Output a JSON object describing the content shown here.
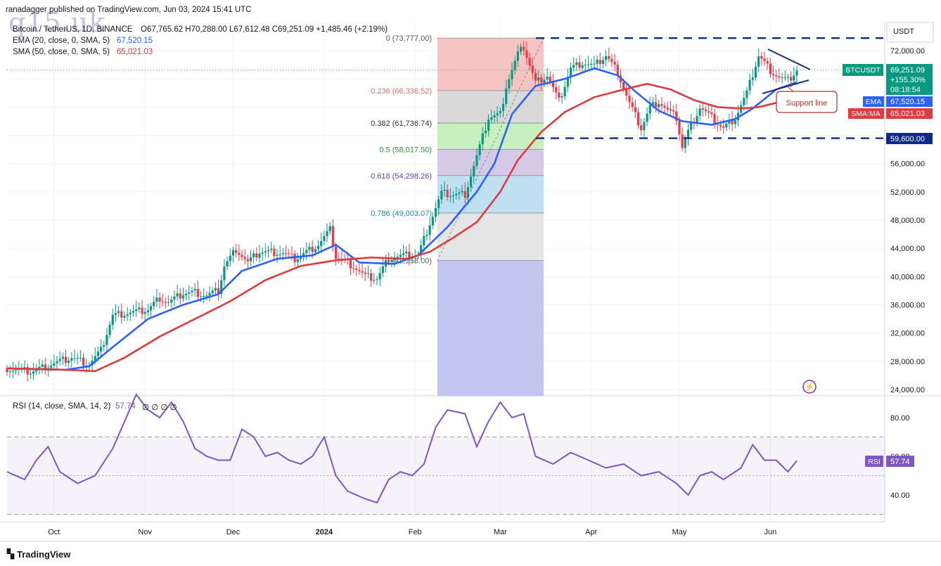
{
  "header": {
    "published": "ranadagger published on TradingView.com, Jun 03, 2024 15:41 UTC",
    "symbol": "Bitcoin / TetherUS, 1D, BINANCE",
    "ohlc": "O67,765.62  H70,288.00  L67,612.48  C69,251.09  +1,485.46 (+2.19%)",
    "ema_label": "EMA (20, close, 0, SMA, 5)",
    "ema_value": "67,520.15",
    "sma_label": "SMA (50, close, 0, SMA, 5)",
    "sma_value": "65,021.03",
    "rsi_label": "RSI (14, close, SMA, 14, 2)",
    "rsi_value": "57.74",
    "rsi_tail": "∅ ∅ ∅ ∅",
    "watermark": "q15.uk",
    "footer_logo": "TradingView"
  },
  "colors": {
    "up": "#089981",
    "down": "#f23645",
    "ema": "#2962ff",
    "sma": "#e03a3e",
    "rsi": "#7e57c2",
    "dash": "#0d2a8a",
    "price_tag": "#089981"
  },
  "chart_data": [
    {
      "type": "line",
      "title": "Bitcoin / TetherUS, 1D, BINANCE",
      "currency": "USDT",
      "y_ticks": [
        24000,
        28000,
        32000,
        36000,
        40000,
        44000,
        48000,
        52000,
        56000,
        60000,
        64000,
        68000,
        72000
      ],
      "y_tick_labels": [
        "24,000.00",
        "28,000.00",
        "32,000.00",
        "36,000.00",
        "40,000.00",
        "44,000.00",
        "48,000.00",
        "52,000.00",
        "56,000.00",
        "60,000.00",
        "64,000.00",
        "68,000.00",
        "72,000.00"
      ],
      "x_tick_labels": [
        "Oct",
        "Nov",
        "Dec",
        "2024",
        "Feb",
        "Mar",
        "Apr",
        "May",
        "Jun"
      ],
      "x_tick_days": [
        16,
        47,
        77,
        108,
        139,
        168,
        199,
        229,
        260
      ],
      "close_series": {
        "name": "BTCUSDT",
        "points": [
          [
            0,
            27000
          ],
          [
            8,
            26500
          ],
          [
            16,
            27700
          ],
          [
            22,
            28500
          ],
          [
            28,
            27600
          ],
          [
            32,
            29500
          ],
          [
            36,
            34500
          ],
          [
            40,
            34800
          ],
          [
            44,
            35000
          ],
          [
            48,
            35300
          ],
          [
            52,
            37000
          ],
          [
            55,
            36300
          ],
          [
            60,
            37600
          ],
          [
            64,
            37800
          ],
          [
            68,
            37300
          ],
          [
            72,
            38000
          ],
          [
            74,
            41500
          ],
          [
            78,
            43900
          ],
          [
            82,
            42000
          ],
          [
            86,
            43500
          ],
          [
            90,
            43500
          ],
          [
            94,
            43300
          ],
          [
            98,
            42500
          ],
          [
            102,
            43500
          ],
          [
            106,
            44500
          ],
          [
            110,
            46600
          ],
          [
            112,
            42800
          ],
          [
            118,
            41500
          ],
          [
            122,
            40000
          ],
          [
            126,
            39700
          ],
          [
            130,
            42600
          ],
          [
            136,
            43000
          ],
          [
            140,
            43000
          ],
          [
            144,
            47600
          ],
          [
            148,
            51800
          ],
          [
            152,
            51600
          ],
          [
            156,
            51700
          ],
          [
            160,
            57000
          ],
          [
            164,
            62500
          ],
          [
            168,
            63000
          ],
          [
            170,
            67000
          ],
          [
            174,
            71500
          ],
          [
            176,
            72500
          ],
          [
            180,
            67500
          ],
          [
            184,
            68500
          ],
          [
            188,
            64800
          ],
          [
            192,
            69500
          ],
          [
            196,
            70300
          ],
          [
            200,
            69800
          ],
          [
            204,
            71300
          ],
          [
            208,
            69000
          ],
          [
            212,
            64500
          ],
          [
            216,
            61000
          ],
          [
            219,
            64000
          ],
          [
            222,
            64800
          ],
          [
            225,
            63500
          ],
          [
            228,
            62500
          ],
          [
            230,
            58300
          ],
          [
            232,
            60500
          ],
          [
            236,
            64000
          ],
          [
            240,
            62500
          ],
          [
            244,
            61000
          ],
          [
            248,
            62500
          ],
          [
            252,
            66000
          ],
          [
            256,
            71300
          ],
          [
            260,
            69200
          ],
          [
            263,
            68200
          ],
          [
            266,
            67700
          ],
          [
            269,
            69251
          ]
        ]
      },
      "series": [
        {
          "name": "EMA (20, close, 0, SMA, 5)",
          "last": 67520.15,
          "points": [
            [
              0,
              27000
            ],
            [
              20,
              26800
            ],
            [
              28,
              27300
            ],
            [
              36,
              30000
            ],
            [
              48,
              34000
            ],
            [
              60,
              36000
            ],
            [
              72,
              37500
            ],
            [
              80,
              40800
            ],
            [
              92,
              42500
            ],
            [
              104,
              43000
            ],
            [
              112,
              44500
            ],
            [
              120,
              42000
            ],
            [
              132,
              41800
            ],
            [
              140,
              43000
            ],
            [
              150,
              47000
            ],
            [
              160,
              52000
            ],
            [
              166,
              56000
            ],
            [
              172,
              63000
            ],
            [
              180,
              67000
            ],
            [
              190,
              68000
            ],
            [
              200,
              69500
            ],
            [
              208,
              68500
            ],
            [
              214,
              66200
            ],
            [
              222,
              63500
            ],
            [
              230,
              62000
            ],
            [
              240,
              61500
            ],
            [
              248,
              62300
            ],
            [
              254,
              63800
            ],
            [
              262,
              66500
            ],
            [
              269,
              67520
            ]
          ]
        },
        {
          "name": "SMA (50, close, 0, SMA, 5)",
          "last": 65021.03,
          "points": [
            [
              0,
              27000
            ],
            [
              20,
              26800
            ],
            [
              30,
              26600
            ],
            [
              40,
              28500
            ],
            [
              52,
              31500
            ],
            [
              64,
              34000
            ],
            [
              76,
              36500
            ],
            [
              88,
              39500
            ],
            [
              100,
              41500
            ],
            [
              112,
              42300
            ],
            [
              124,
              42700
            ],
            [
              136,
              42500
            ],
            [
              144,
              43500
            ],
            [
              152,
              45500
            ],
            [
              160,
              47700
            ],
            [
              168,
              52000
            ],
            [
              174,
              56500
            ],
            [
              182,
              60500
            ],
            [
              190,
              63300
            ],
            [
              200,
              65400
            ],
            [
              210,
              66500
            ],
            [
              218,
              67300
            ],
            [
              226,
              66500
            ],
            [
              234,
              65000
            ],
            [
              242,
              64000
            ],
            [
              250,
              63800
            ],
            [
              256,
              64000
            ],
            [
              262,
              64600
            ],
            [
              269,
              65021
            ]
          ]
        }
      ],
      "fibonacci": {
        "levels": [
          {
            "ratio": "0",
            "price": 73777.0,
            "label": "0 (73,777.00)"
          },
          {
            "ratio": "0.236",
            "price": 66338.52,
            "label": "0.236 (66,338.52)"
          },
          {
            "ratio": "0.382",
            "price": 61736.74,
            "label": "0.382 (61,736.74)"
          },
          {
            "ratio": "0.5",
            "price": 58017.5,
            "label": "0.5 (58,017.50)"
          },
          {
            "ratio": "0.618",
            "price": 54298.26,
            "label": "0.618 (54,298.26)"
          },
          {
            "ratio": "0.786",
            "price": 49003.07,
            "label": "0.786 (49,003.07)"
          },
          {
            "ratio": "1",
            "price": 42258.0,
            "label": "1 (42,258.00)"
          }
        ],
        "fill_colors": [
          "#f7c4c4",
          "#d9d9d9",
          "#c8efc0",
          "#d4c9e6",
          "#bfe0f2",
          "#e5e5e5",
          "#c3c6f1"
        ]
      },
      "range_lines": [
        {
          "price": 73777,
          "label": ""
        },
        {
          "price": 59600,
          "label": "59,600.00"
        }
      ],
      "annotation": "Support line",
      "price_labels": {
        "last_symbol": "BTCUSDT",
        "last_price": "69,251.09",
        "change_pct": "+155.30%",
        "countdown": "08:18:54",
        "ema_tag": "EMA",
        "ema_price": "67,520.15",
        "sma_tag": "SMA:MA",
        "sma_price": "65,021.03"
      }
    },
    {
      "type": "line",
      "title": "RSI (14, close, SMA, 14, 2)",
      "y_ticks": [
        40,
        60,
        80
      ],
      "y_tick_labels": [
        "40.00",
        "60.00",
        "80.00"
      ],
      "bands": [
        30,
        50,
        70
      ],
      "series": [
        {
          "name": "RSI",
          "last": 57.74,
          "points": [
            [
              0,
              52
            ],
            [
              6,
              48
            ],
            [
              10,
              58
            ],
            [
              14,
              65
            ],
            [
              18,
              52
            ],
            [
              24,
              46
            ],
            [
              30,
              50
            ],
            [
              36,
              64
            ],
            [
              40,
              78
            ],
            [
              44,
              92
            ],
            [
              48,
              84
            ],
            [
              52,
              80
            ],
            [
              56,
              88
            ],
            [
              60,
              78
            ],
            [
              64,
              64
            ],
            [
              68,
              60
            ],
            [
              72,
              58
            ],
            [
              76,
              58
            ],
            [
              80,
              74
            ],
            [
              84,
              70
            ],
            [
              88,
              60
            ],
            [
              92,
              62
            ],
            [
              96,
              58
            ],
            [
              100,
              56
            ],
            [
              104,
              60
            ],
            [
              108,
              70
            ],
            [
              112,
              50
            ],
            [
              116,
              42
            ],
            [
              122,
              38
            ],
            [
              126,
              36
            ],
            [
              130,
              48
            ],
            [
              134,
              52
            ],
            [
              138,
              50
            ],
            [
              142,
              56
            ],
            [
              146,
              75
            ],
            [
              150,
              84
            ],
            [
              156,
              82
            ],
            [
              160,
              65
            ],
            [
              164,
              78
            ],
            [
              168,
              88
            ],
            [
              172,
              80
            ],
            [
              176,
              82
            ],
            [
              180,
              60
            ],
            [
              186,
              56
            ],
            [
              192,
              62
            ],
            [
              198,
              58
            ],
            [
              204,
              54
            ],
            [
              210,
              56
            ],
            [
              216,
              50
            ],
            [
              222,
              52
            ],
            [
              228,
              46
            ],
            [
              232,
              40
            ],
            [
              236,
              50
            ],
            [
              240,
              52
            ],
            [
              244,
              48
            ],
            [
              250,
              54
            ],
            [
              254,
              66
            ],
            [
              258,
              58
            ],
            [
              262,
              58
            ],
            [
              266,
              52
            ],
            [
              269,
              57.74
            ]
          ]
        }
      ]
    }
  ]
}
